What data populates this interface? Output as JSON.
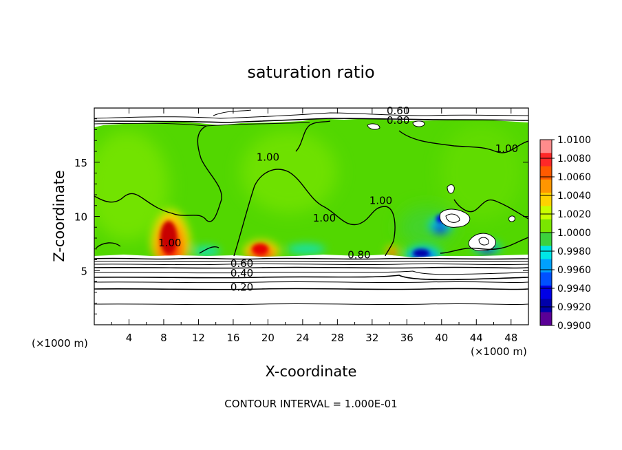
{
  "chart_data": {
    "type": "heatmap",
    "title": "saturation ratio",
    "xlabel": "X-coordinate",
    "ylabel": "Z-coordinate",
    "x_unit": "(×1000 m)",
    "y_unit": "(×1000 m)",
    "footer": "CONTOUR INTERVAL = 1.000E-01",
    "xlim": [
      0,
      50
    ],
    "ylim": [
      0,
      20
    ],
    "x_ticks": [
      4,
      8,
      12,
      16,
      20,
      24,
      28,
      32,
      36,
      40,
      44,
      48
    ],
    "y_ticks": [
      5,
      10,
      15
    ],
    "colorbar": {
      "levels": [
        "1.0100",
        "1.0080",
        "1.0060",
        "1.0040",
        "1.0020",
        "1.0000",
        "0.9980",
        "0.9960",
        "0.9940",
        "0.9920",
        "0.9900"
      ],
      "colors": [
        "#ff8c8c",
        "#ff2828",
        "#ff5a00",
        "#ff9600",
        "#ffd200",
        "#c8ff00",
        "#7ae600",
        "#3cd23c",
        "#00e6e6",
        "#00a0ff",
        "#0050ff",
        "#0000e6",
        "#0000aa",
        "#5a0096"
      ]
    },
    "contour_labels": [
      {
        "text": "0.60",
        "x": 35,
        "y": 19.5
      },
      {
        "text": "0.80",
        "x": 35,
        "y": 18.6
      },
      {
        "text": "1.00",
        "x": 20,
        "y": 15.2
      },
      {
        "text": "1.00",
        "x": 33,
        "y": 11.2
      },
      {
        "text": "1.00",
        "x": 47.5,
        "y": 16
      },
      {
        "text": "1.00",
        "x": 8.7,
        "y": 7.3
      },
      {
        "text": "1.00",
        "x": 26.5,
        "y": 9.6
      },
      {
        "text": "0.60",
        "x": 17,
        "y": 5.4
      },
      {
        "text": "0.40",
        "x": 17,
        "y": 4.5
      },
      {
        "text": "0.20",
        "x": 17,
        "y": 3.2
      },
      {
        "text": "0.80",
        "x": 30.5,
        "y": 6.2
      }
    ]
  }
}
